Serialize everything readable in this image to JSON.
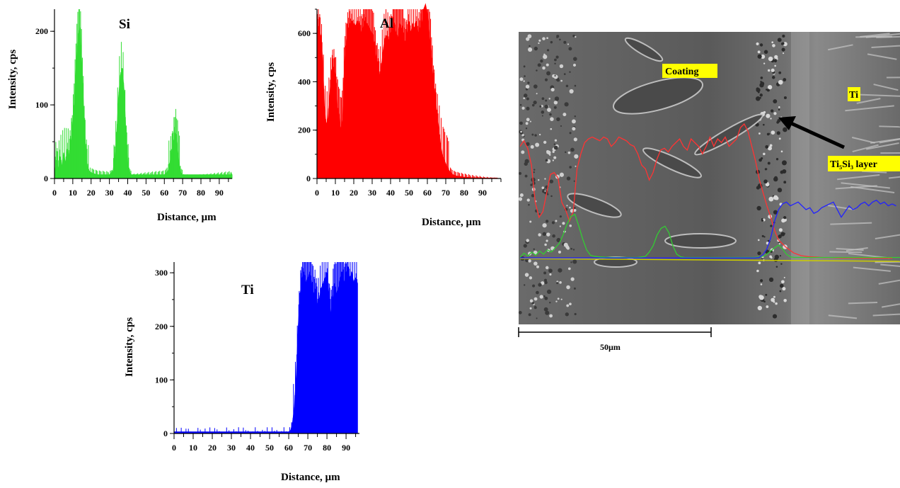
{
  "chart_data": [
    {
      "id": "si",
      "type": "area",
      "title": "Si",
      "xlabel": "Distance, µm",
      "ylabel": "Intensity, cps",
      "xlim": [
        0,
        97
      ],
      "ylim": [
        0,
        230
      ],
      "xticks": [
        0,
        10,
        20,
        30,
        40,
        50,
        60,
        70,
        80,
        90
      ],
      "yticks": [
        0,
        100,
        200
      ],
      "color": "#33dd33",
      "series": [
        {
          "x": [
            0,
            1,
            2,
            3,
            4,
            5,
            6,
            7,
            8,
            9,
            10,
            11,
            12,
            13,
            14,
            15,
            16,
            17,
            18,
            19,
            20,
            22,
            24,
            26,
            28,
            30,
            32,
            33,
            34,
            35,
            36,
            37,
            38,
            39,
            40,
            41,
            42,
            44,
            46,
            48,
            50,
            52,
            54,
            56,
            58,
            60,
            62,
            63,
            64,
            65,
            66,
            67,
            68,
            69,
            70,
            72,
            74,
            76,
            78,
            80,
            82,
            84,
            86,
            88,
            90,
            92,
            94,
            96,
            97
          ],
          "values": [
            5,
            25,
            12,
            30,
            15,
            35,
            20,
            40,
            30,
            50,
            70,
            110,
            160,
            195,
            205,
            150,
            90,
            40,
            15,
            10,
            8,
            6,
            5,
            5,
            5,
            5,
            10,
            30,
            60,
            110,
            140,
            150,
            120,
            60,
            20,
            8,
            5,
            5,
            5,
            5,
            5,
            5,
            5,
            5,
            5,
            5,
            10,
            20,
            35,
            50,
            62,
            45,
            20,
            8,
            5,
            5,
            5,
            5,
            5,
            5,
            5,
            5,
            5,
            5,
            5,
            5,
            5,
            5,
            5
          ]
        }
      ]
    },
    {
      "id": "al",
      "type": "area",
      "title": "Al",
      "xlabel": "Distance, µm",
      "ylabel": "Intensity, cps",
      "xlim": [
        0,
        100
      ],
      "ylim": [
        0,
        700
      ],
      "xticks": [
        0,
        10,
        20,
        30,
        40,
        50,
        60,
        70,
        80,
        90
      ],
      "yticks": [
        0,
        200,
        400,
        600
      ],
      "color": "#ff0000",
      "series": [
        {
          "x": [
            0,
            1,
            2,
            3,
            4,
            5,
            6,
            7,
            8,
            9,
            10,
            11,
            12,
            13,
            14,
            15,
            16,
            17,
            18,
            19,
            20,
            21,
            22,
            23,
            24,
            25,
            26,
            27,
            28,
            29,
            30,
            31,
            32,
            33,
            34,
            35,
            36,
            37,
            38,
            39,
            40,
            41,
            42,
            43,
            44,
            45,
            46,
            47,
            48,
            49,
            50,
            51,
            52,
            53,
            54,
            55,
            56,
            57,
            58,
            59,
            60,
            61,
            62,
            63,
            64,
            65,
            66,
            67,
            68,
            70,
            72,
            74,
            76,
            78,
            80,
            82,
            84,
            86,
            88,
            90,
            92,
            94,
            96,
            98
          ],
          "values": [
            600,
            630,
            590,
            500,
            300,
            220,
            250,
            350,
            450,
            460,
            430,
            300,
            260,
            200,
            250,
            480,
            560,
            620,
            640,
            650,
            640,
            630,
            650,
            640,
            600,
            620,
            650,
            640,
            630,
            610,
            600,
            560,
            500,
            480,
            420,
            460,
            530,
            580,
            590,
            570,
            600,
            620,
            640,
            600,
            580,
            640,
            620,
            600,
            560,
            600,
            650,
            600,
            640,
            620,
            650,
            600,
            620,
            640,
            700,
            720,
            680,
            600,
            520,
            420,
            350,
            280,
            220,
            150,
            100,
            60,
            30,
            15,
            10,
            8,
            5,
            5,
            3,
            3,
            3,
            2,
            2,
            2,
            2,
            2
          ]
        }
      ]
    },
    {
      "id": "ti",
      "type": "area",
      "title": "Ti",
      "xlabel": "Distance, µm",
      "ylabel": "Intensity, cps",
      "xlim": [
        0,
        97
      ],
      "ylim": [
        0,
        320
      ],
      "xticks": [
        0,
        10,
        20,
        30,
        40,
        50,
        60,
        70,
        80,
        90
      ],
      "yticks": [
        0,
        100,
        200,
        300
      ],
      "color": "#0000ff",
      "series": [
        {
          "x": [
            0,
            5,
            10,
            15,
            20,
            25,
            30,
            35,
            40,
            45,
            50,
            55,
            60,
            61,
            62,
            63,
            64,
            65,
            66,
            67,
            68,
            69,
            70,
            71,
            72,
            73,
            74,
            75,
            76,
            77,
            78,
            79,
            80,
            81,
            82,
            83,
            84,
            85,
            86,
            87,
            88,
            89,
            90,
            91,
            92,
            93,
            94,
            95,
            96
          ],
          "values": [
            3,
            3,
            3,
            3,
            3,
            3,
            3,
            3,
            3,
            3,
            3,
            3,
            3,
            5,
            20,
            50,
            110,
            200,
            260,
            290,
            300,
            280,
            290,
            300,
            280,
            260,
            270,
            240,
            250,
            270,
            280,
            290,
            300,
            260,
            220,
            250,
            280,
            260,
            270,
            290,
            300,
            280,
            300,
            310,
            290,
            300,
            280,
            290,
            280
          ]
        }
      ]
    }
  ],
  "micrograph": {
    "labels": {
      "coating": "Coating",
      "ti": "Ti",
      "layer": "Ti₅Si₃ layer"
    },
    "scale_bar": "50µm",
    "profiles": {
      "al_color": "#ff3333",
      "si_color": "#33cc33",
      "ti_color": "#2222ff",
      "baseline_color": "#cccc00"
    }
  }
}
